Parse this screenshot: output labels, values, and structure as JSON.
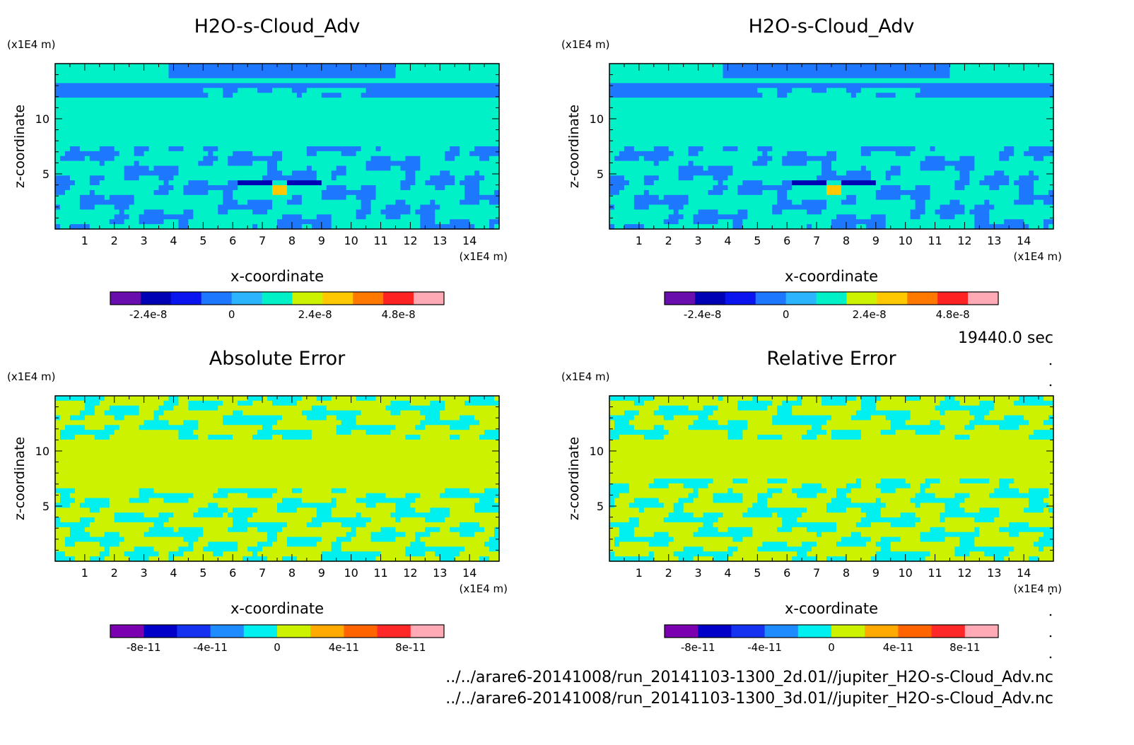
{
  "chart_data": [
    {
      "type": "heatmap",
      "title": "H2O-s-Cloud_Adv",
      "xlabel": "x-coordinate",
      "ylabel": "z-coordinate",
      "xunit": "(x1E4 m)",
      "yunit": "(x1E4 m)",
      "xlim": [
        0,
        15
      ],
      "ylim": [
        0,
        15
      ],
      "xticks": [
        1,
        2,
        3,
        4,
        5,
        6,
        7,
        8,
        9,
        10,
        11,
        12,
        13,
        14
      ],
      "yticks": [
        5,
        10
      ],
      "colorbar": {
        "colors": [
          "#6a0dad",
          "#0000b4",
          "#0a14ee",
          "#1e78ff",
          "#2db4ff",
          "#00f0c8",
          "#ccf200",
          "#ffc800",
          "#ff7800",
          "#ff2222",
          "#ffaab4"
        ],
        "tick_labels": [
          "-2.4e-8",
          "0",
          "2.4e-8",
          "4.8e-8"
        ]
      }
    },
    {
      "type": "heatmap",
      "title": "H2O-s-Cloud_Adv",
      "xlabel": "x-coordinate",
      "ylabel": "z-coordinate",
      "xunit": "(x1E4 m)",
      "yunit": "(x1E4 m)",
      "xlim": [
        0,
        15
      ],
      "ylim": [
        0,
        15
      ],
      "xticks": [
        1,
        2,
        3,
        4,
        5,
        6,
        7,
        8,
        9,
        10,
        11,
        12,
        13,
        14
      ],
      "yticks": [
        5,
        10
      ],
      "colorbar": {
        "colors": [
          "#6a0dad",
          "#0000b4",
          "#0a14ee",
          "#1e78ff",
          "#2db4ff",
          "#00f0c8",
          "#ccf200",
          "#ffc800",
          "#ff7800",
          "#ff2222",
          "#ffaab4"
        ],
        "tick_labels": [
          "-2.4e-8",
          "0",
          "2.4e-8",
          "4.8e-8"
        ]
      }
    },
    {
      "type": "heatmap",
      "title": "Absolute Error",
      "xlabel": "x-coordinate",
      "ylabel": "z-coordinate",
      "xunit": "(x1E4 m)",
      "yunit": "(x1E4 m)",
      "xlim": [
        0,
        15
      ],
      "ylim": [
        0,
        15
      ],
      "xticks": [
        1,
        2,
        3,
        4,
        5,
        6,
        7,
        8,
        9,
        10,
        11,
        12,
        13,
        14
      ],
      "yticks": [
        5,
        10
      ],
      "colorbar": {
        "colors": [
          "#7a00b0",
          "#0000c8",
          "#1432f0",
          "#1e8cff",
          "#00f0f0",
          "#ccf200",
          "#ffaa00",
          "#ff6400",
          "#ff2828",
          "#ffaab4"
        ],
        "tick_labels": [
          "-8e-11",
          "-4e-11",
          "0",
          "4e-11",
          "8e-11"
        ]
      }
    },
    {
      "type": "heatmap",
      "title": "Relative Error",
      "xlabel": "x-coordinate",
      "ylabel": "z-coordinate",
      "xunit": "(x1E4 m)",
      "yunit": "(x1E4 m)",
      "xlim": [
        0,
        15
      ],
      "ylim": [
        0,
        15
      ],
      "xticks": [
        1,
        2,
        3,
        4,
        5,
        6,
        7,
        8,
        9,
        10,
        11,
        12,
        13,
        14
      ],
      "yticks": [
        5,
        10
      ],
      "colorbar": {
        "colors": [
          "#7a00b0",
          "#0000c8",
          "#1432f0",
          "#1e8cff",
          "#00f0f0",
          "#ccf200",
          "#ffaa00",
          "#ff6400",
          "#ff2828",
          "#ffaab4"
        ],
        "tick_labels": [
          "-8e-11",
          "-4e-11",
          "0",
          "4e-11",
          "8e-11"
        ]
      }
    }
  ],
  "time_label": "19440.0 sec",
  "files": [
    "../../arare6-20141008/run_20141103-1300_2d.01//jupiter_H2O-s-Cloud_Adv.nc",
    "../../arare6-20141008/run_20141103-1300_3d.01//jupiter_H2O-s-Cloud_Adv.nc"
  ]
}
